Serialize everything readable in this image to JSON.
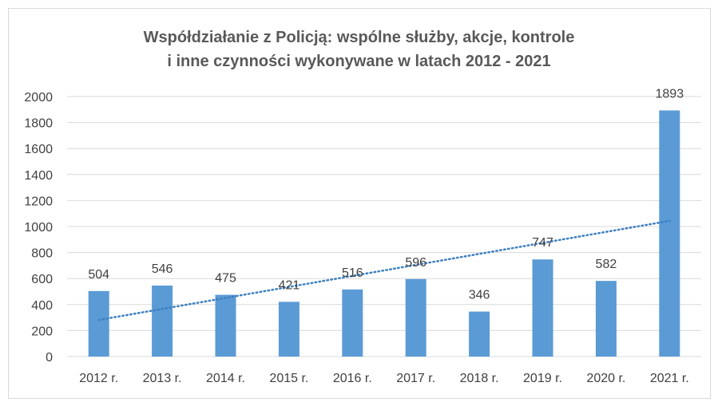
{
  "chart_data": {
    "type": "bar",
    "title_line1": "Współdziałanie z Policją: wspólne służby, akcje, kontrole",
    "title_line2": "i inne czynności wykonywane w latach 2012 - 2021",
    "categories": [
      "2012 r.",
      "2013 r.",
      "2014 r.",
      "2015 r.",
      "2016 r.",
      "2017 r.",
      "2018 r.",
      "2019 r.",
      "2020 r.",
      "2021 r."
    ],
    "values": [
      504,
      546,
      475,
      421,
      516,
      596,
      346,
      747,
      582,
      1893
    ],
    "ylim": [
      0,
      2000
    ],
    "yticks": [
      0,
      200,
      400,
      600,
      800,
      1000,
      1200,
      1400,
      1600,
      1800,
      2000
    ],
    "grid": true,
    "trendline": "linear",
    "data_labels": true,
    "legend": "none",
    "bar_color": "#5b9bd5",
    "trend_color": "#3e7fc1"
  }
}
